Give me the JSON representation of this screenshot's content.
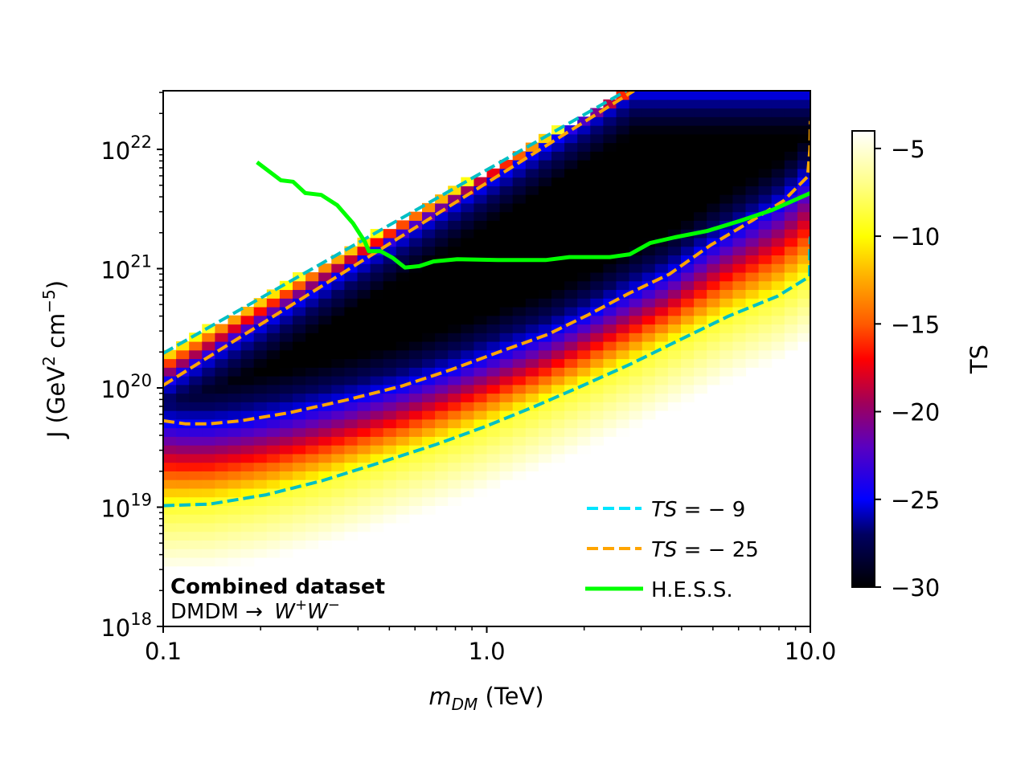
{
  "chart_data": {
    "type": "heatmap",
    "title": "",
    "xlabel": "m_DM (TeV)",
    "xlabel_parts": {
      "main": "m",
      "sub": "DM",
      "unit": " (TeV)"
    },
    "ylabel": "J (GeV^2 cm^-5)",
    "ylabel_parts": {
      "pre": "J (GeV",
      "sup1": "2",
      "mid": " cm",
      "sup2": "−5",
      "post": ")"
    },
    "xscale": "log",
    "yscale": "log",
    "xlim": [
      0.1,
      10.0
    ],
    "ylim": [
      1e+18,
      3.1e+22
    ],
    "x_ticks": [
      {
        "value": 0.1,
        "label": "0.1"
      },
      {
        "value": 1.0,
        "label": "1.0"
      },
      {
        "value": 10.0,
        "label": "10.0"
      }
    ],
    "y_ticks": [
      {
        "value": 1e+18,
        "base": "10",
        "exp": "18"
      },
      {
        "value": 1e+19,
        "base": "10",
        "exp": "19"
      },
      {
        "value": 1e+20,
        "base": "10",
        "exp": "20"
      },
      {
        "value": 1e+21,
        "base": "10",
        "exp": "21"
      },
      {
        "value": 1e+22,
        "base": "10",
        "exp": "22"
      }
    ],
    "colorbar": {
      "label": "TS",
      "colormap": "gnuplot2-like (black-blue-purple-red-orange-yellow-white)",
      "range": [
        -30,
        -4
      ],
      "ticks": [
        {
          "value": -5,
          "label": "−5"
        },
        {
          "value": -10,
          "label": "−10"
        },
        {
          "value": -15,
          "label": "−15"
        },
        {
          "value": -20,
          "label": "−20"
        },
        {
          "value": -25,
          "label": "−25"
        },
        {
          "value": -30,
          "label": "−30"
        }
      ],
      "stops": [
        {
          "value": -30,
          "color": "#000000"
        },
        {
          "value": -27,
          "color": "#000060"
        },
        {
          "value": -25,
          "color": "#0000ff"
        },
        {
          "value": -22,
          "color": "#5a00c0"
        },
        {
          "value": -19.5,
          "color": "#a0005a"
        },
        {
          "value": -17,
          "color": "#ff0000"
        },
        {
          "value": -15,
          "color": "#ff5a00"
        },
        {
          "value": -12.5,
          "color": "#ffaa00"
        },
        {
          "value": -10,
          "color": "#ffff00"
        },
        {
          "value": -7,
          "color": "#ffff88"
        },
        {
          "value": -4,
          "color": "#ffffff"
        }
      ]
    },
    "heatmap_description": "TS as a function of dark matter mass and J-factor; black (TS<=-30) excluded band between a steep upper diagonal edge and a curved lower boundary, fading to white (TS~-4) at low J.",
    "series": [
      {
        "name": "TS = −9 (lower)",
        "legend_group": "ts9",
        "style": "dashed",
        "color": "#00bfc4",
        "points": [
          [
            0.1,
            1.03e+19
          ],
          [
            0.139,
            1.06e+19
          ],
          [
            0.208,
            1.27e+19
          ],
          [
            0.311,
            1.67e+19
          ],
          [
            0.465,
            2.35e+19
          ],
          [
            0.696,
            3.35e+19
          ],
          [
            0.985,
            4.72e+19
          ],
          [
            1.39,
            6.9e+19
          ],
          [
            1.97,
            1.04e+20
          ],
          [
            2.79,
            1.59e+20
          ],
          [
            3.95,
            2.53e+20
          ],
          [
            5.59,
            4e+20
          ],
          [
            7.91,
            5.86e+20
          ],
          [
            9.95,
            8.6e+20
          ],
          [
            9.95,
            1.36e+21
          ],
          [
            10.0,
            1.86e+21
          ]
        ]
      },
      {
        "name": "TS = −9 (upper edge)",
        "legend_group": "ts9",
        "style": "dashed",
        "color": "#00bfc4",
        "points": [
          [
            0.1,
            1.95e+20
          ],
          [
            2.7,
            3.1e+22
          ]
        ]
      },
      {
        "name": "TS = −25 (lower)",
        "legend_group": "ts25",
        "style": "dashed",
        "color": "#ffa500",
        "points": [
          [
            0.1,
            5.3e+19
          ],
          [
            0.117,
            5e+19
          ],
          [
            0.139,
            5e+19
          ],
          [
            0.174,
            5.3e+19
          ],
          [
            0.246,
            6.2e+19
          ],
          [
            0.367,
            7.9e+19
          ],
          [
            0.548,
            1.04e+20
          ],
          [
            0.775,
            1.42e+20
          ],
          [
            1.09,
            2e+20
          ],
          [
            1.54,
            2.8e+20
          ],
          [
            2.06,
            4.1e+20
          ],
          [
            2.75,
            6.2e+20
          ],
          [
            3.67,
            9e+20
          ],
          [
            4.91,
            1.57e+21
          ],
          [
            6.56,
            2.5e+21
          ],
          [
            8.26,
            3.7e+21
          ],
          [
            9.8,
            5.9e+21
          ],
          [
            9.97,
            1e+22
          ],
          [
            10.0,
            1.73e+22
          ]
        ]
      },
      {
        "name": "TS = −25 (upper edge)",
        "legend_group": "ts25",
        "style": "dashed",
        "color": "#ffa500",
        "points": [
          [
            0.1,
            1.05e+20
          ],
          [
            2.85,
            3.1e+22
          ]
        ]
      },
      {
        "name": "H.E.S.S.",
        "legend_group": "hess",
        "style": "solid",
        "color": "#00ff00",
        "points": [
          [
            0.195,
            7.8e+21
          ],
          [
            0.231,
            5.5e+21
          ],
          [
            0.252,
            5.35e+21
          ],
          [
            0.275,
            4.3e+21
          ],
          [
            0.308,
            4.15e+21
          ],
          [
            0.345,
            3.4e+21
          ],
          [
            0.386,
            2.4e+21
          ],
          [
            0.42,
            1.68e+21
          ],
          [
            0.432,
            1.4e+21
          ],
          [
            0.47,
            1.4e+21
          ],
          [
            0.512,
            1.23e+21
          ],
          [
            0.559,
            1.02e+21
          ],
          [
            0.62,
            1.05e+21
          ],
          [
            0.685,
            1.15e+21
          ],
          [
            0.811,
            1.2e+21
          ],
          [
            1.08,
            1.18e+21
          ],
          [
            1.52,
            1.18e+21
          ],
          [
            1.8,
            1.25e+21
          ],
          [
            2.4,
            1.25e+21
          ],
          [
            2.77,
            1.32e+21
          ],
          [
            3.2,
            1.64e+21
          ],
          [
            3.81,
            1.83e+21
          ],
          [
            4.8,
            2.07e+21
          ],
          [
            6.05,
            2.51e+21
          ],
          [
            7.62,
            3.1e+21
          ],
          [
            10.0,
            4.3e+21
          ]
        ]
      }
    ],
    "legend": {
      "position": "lower-right",
      "entries": [
        {
          "label_italic": "TS",
          "label_rest": " = − 9",
          "color": "#00e5ff",
          "style": "dashed"
        },
        {
          "label_italic": "TS",
          "label_rest": " = − 25",
          "color": "#ffa500",
          "style": "dashed"
        },
        {
          "label_italic": "",
          "label_rest": "H.E.S.S.",
          "color": "#00ff00",
          "style": "solid"
        }
      ]
    },
    "annotations": {
      "position": "lower-left",
      "line1": "Combined dataset",
      "line2_prefix": "DMDM → ",
      "line2_w": "W",
      "line2_plus": "+",
      "line2_minus": "−"
    },
    "grid": false
  }
}
